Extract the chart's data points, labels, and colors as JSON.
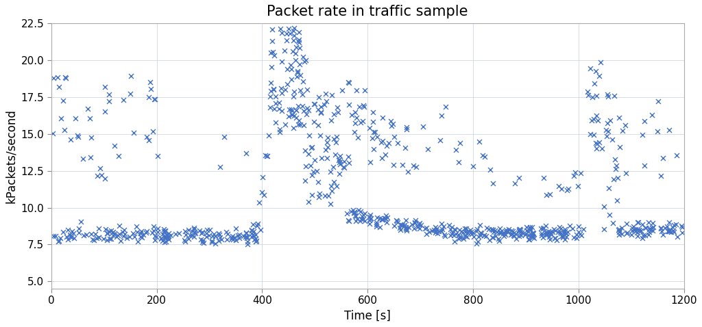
{
  "title": "Packet rate in traffic sample",
  "xlabel": "Time [s]",
  "ylabel": "kPackets/second",
  "xlim": [
    0,
    1200
  ],
  "ylim": [
    4.5,
    22.5
  ],
  "yticks": [
    5.0,
    7.5,
    10.0,
    12.5,
    15.0,
    17.5,
    20.0,
    22.5
  ],
  "xticks": [
    0,
    200,
    400,
    600,
    800,
    1000,
    1200
  ],
  "marker_color": "#4472c4",
  "marker": "x",
  "marker_size": 5,
  "marker_linewidth": 1.0,
  "background_color": "#ffffff",
  "grid_color": "#c8d0dc",
  "title_fontsize": 15,
  "label_fontsize": 12,
  "seed": 42
}
